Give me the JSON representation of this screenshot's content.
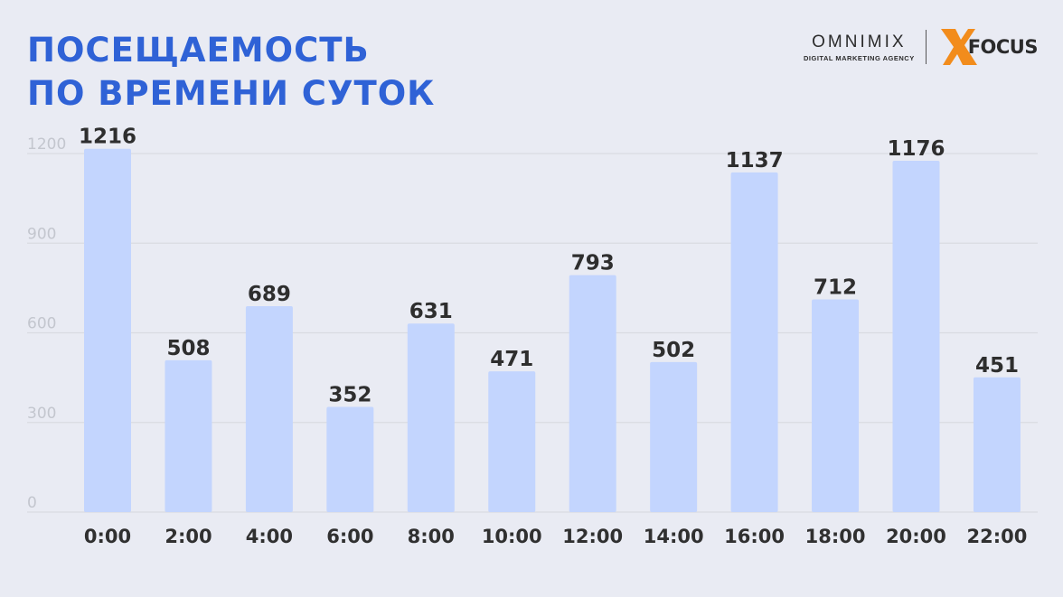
{
  "title_lines": [
    "ПОСЕЩАЕМОСТЬ",
    "ПО ВРЕМЕНИ СУТОК"
  ],
  "brand": {
    "omnimix_name": "OMNIMIX",
    "omnimix_sub": "DIGITAL MARKETING AGENCY",
    "focus_name": "FOCUS",
    "focus_color": "#f28c1c"
  },
  "colors": {
    "background": "#e9ebf3",
    "title": "#2f62d6",
    "bar": "#c3d5fe",
    "grid": "#d9dbe1"
  },
  "chart_data": {
    "type": "bar",
    "title": "ПОСЕЩАЕМОСТЬ ПО ВРЕМЕНИ СУТОК",
    "categories": [
      "0:00",
      "2:00",
      "4:00",
      "6:00",
      "8:00",
      "10:00",
      "12:00",
      "14:00",
      "16:00",
      "18:00",
      "20:00",
      "22:00"
    ],
    "values": [
      1216,
      508,
      689,
      352,
      631,
      471,
      793,
      502,
      1137,
      712,
      1176,
      451
    ],
    "data_labels": [
      "1216",
      "508",
      "689",
      "352",
      "631",
      "471",
      "793",
      "502",
      "1137",
      "712",
      "1176",
      "451"
    ],
    "yticks": [
      0,
      300,
      600,
      900,
      1200
    ],
    "ytick_labels": [
      "0",
      "300",
      "600",
      "900",
      "1200"
    ],
    "ylim": [
      0,
      1200
    ],
    "xlabel": "",
    "ylabel": "",
    "grid": true,
    "legend": "none"
  }
}
